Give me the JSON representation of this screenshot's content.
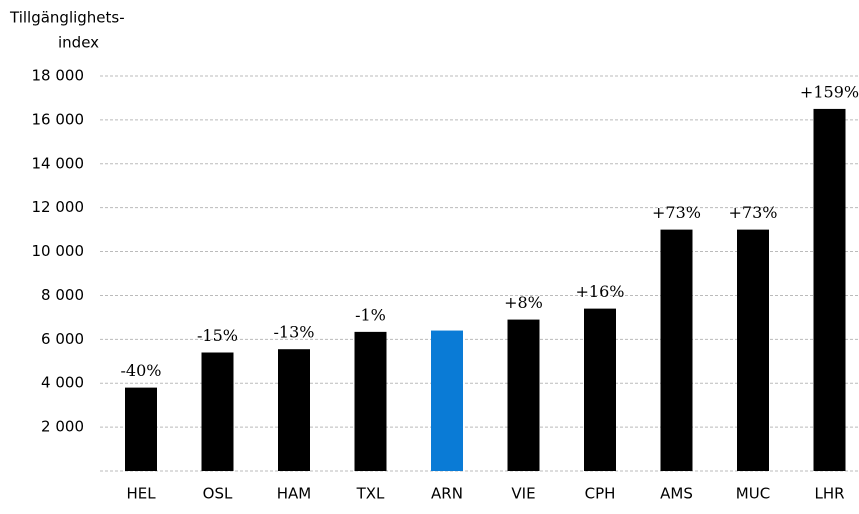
{
  "chart_data": {
    "type": "bar",
    "y_label": [
      "Tillgänglighets-",
      "index"
    ],
    "categories": [
      "HEL",
      "OSL",
      "HAM",
      "TXL",
      "ARN",
      "VIE",
      "CPH",
      "AMS",
      "MUC",
      "LHR"
    ],
    "values": [
      3800,
      5400,
      5550,
      6340,
      6400,
      6900,
      7400,
      11000,
      11000,
      16500
    ],
    "annotations": [
      "-40%",
      "-15%",
      "-13%",
      "-1%",
      null,
      "+8%",
      "+16%",
      "+73%",
      "+73%",
      "+159%"
    ],
    "colors": [
      "#000000",
      "#000000",
      "#000000",
      "#000000",
      "#0a7bd6",
      "#000000",
      "#000000",
      "#000000",
      "#000000",
      "#000000"
    ],
    "ylim": [
      0,
      18000
    ],
    "yticks": [
      {
        "value": 2000,
        "label": "2 000"
      },
      {
        "value": 4000,
        "label": "4 000"
      },
      {
        "value": 6000,
        "label": "6 000"
      },
      {
        "value": 8000,
        "label": "8 000"
      },
      {
        "value": 10000,
        "label": "10 000"
      },
      {
        "value": 12000,
        "label": "12 000"
      },
      {
        "value": 14000,
        "label": "14 000"
      },
      {
        "value": 16000,
        "label": "16 000"
      },
      {
        "value": 18000,
        "label": "18 000"
      }
    ],
    "grid": true
  }
}
